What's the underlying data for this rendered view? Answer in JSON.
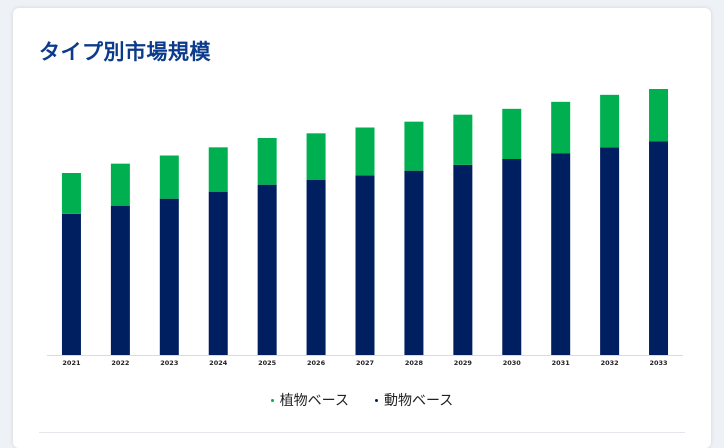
{
  "title": "タイプ別市場規模",
  "colors": {
    "series1": "#001f60",
    "series2": "#00b050",
    "title": "#0d3b8c"
  },
  "chart_data": {
    "type": "bar",
    "stacked": true,
    "categories": [
      "2021",
      "2022",
      "2023",
      "2024",
      "2025",
      "2026",
      "2027",
      "2028",
      "2029",
      "2030",
      "2031",
      "2032",
      "2033"
    ],
    "series": [
      {
        "name": "動物ベース",
        "values": [
          121,
          128,
          134,
          140,
          146,
          150,
          154,
          158,
          163,
          168,
          173,
          178,
          183
        ],
        "color": "#001f60"
      },
      {
        "name": "植物ベース",
        "values": [
          35,
          36,
          37,
          38,
          40,
          40,
          41,
          42,
          43,
          43,
          44,
          45,
          45
        ],
        "color": "#00b050"
      }
    ],
    "ylim": [
      0,
      240
    ],
    "grid": false,
    "legend": "bottom"
  },
  "legend_items": [
    {
      "label": "植物ベース",
      "color": "#00b050"
    },
    {
      "label": "動物ベース",
      "color": "#001f60"
    }
  ]
}
